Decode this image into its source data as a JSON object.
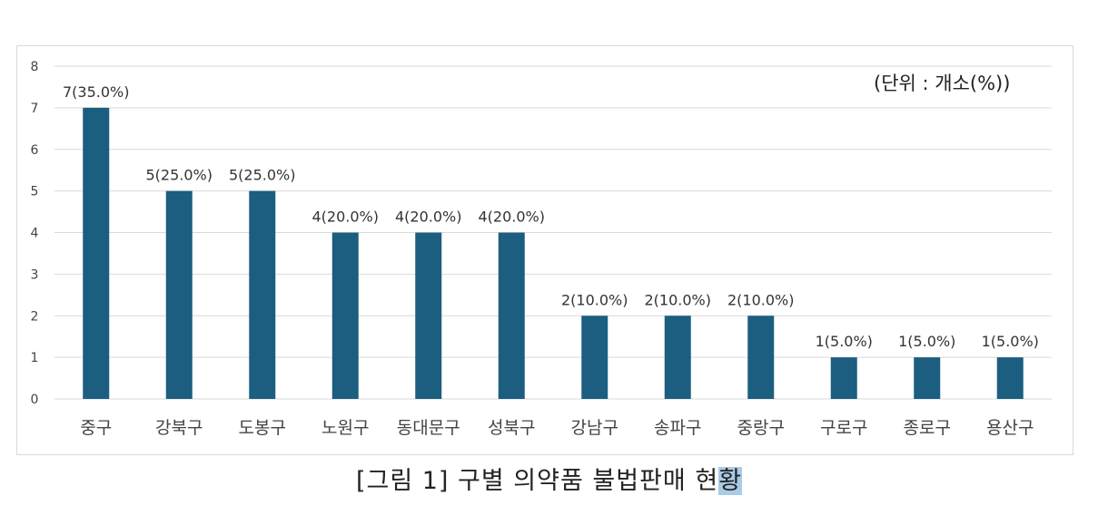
{
  "chart_data": {
    "type": "bar",
    "categories": [
      "중구",
      "강북구",
      "도봉구",
      "노원구",
      "동대문구",
      "성북구",
      "강남구",
      "송파구",
      "중랑구",
      "구로구",
      "종로구",
      "용산구"
    ],
    "values": [
      7,
      5,
      5,
      4,
      4,
      4,
      2,
      2,
      2,
      1,
      1,
      1
    ],
    "data_labels": [
      "7(35.0%)",
      "5(25.0%)",
      "5(25.0%)",
      "4(20.0%)",
      "4(20.0%)",
      "4(20.0%)",
      "2(10.0%)",
      "2(10.0%)",
      "2(10.0%)",
      "1(5.0%)",
      "1(5.0%)",
      "1(5.0%)"
    ],
    "ylim": [
      0,
      8
    ],
    "yticks": [
      "0",
      "1",
      "2",
      "3",
      "4",
      "5",
      "6",
      "7",
      "8"
    ],
    "grid": true,
    "bar_color": "#1b5e80",
    "unit_label": "(단위 : 개소(%))"
  },
  "caption": {
    "main": "[그림 1] 구별 의약품 불법판매 현",
    "highlighted": "황"
  }
}
